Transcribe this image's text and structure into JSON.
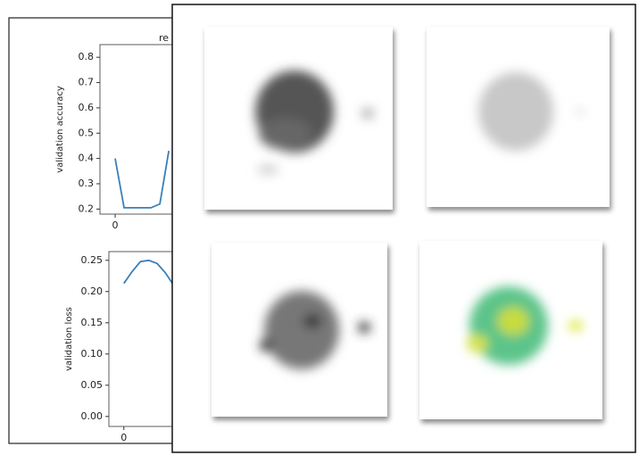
{
  "chart_data": [
    {
      "type": "line",
      "title": "re",
      "y_label": "validation accuracy",
      "x": [
        0,
        1,
        2,
        3,
        4,
        5,
        6
      ],
      "values": [
        0.4,
        0.205,
        0.205,
        0.205,
        0.205,
        0.22,
        0.43
      ],
      "color": "#3a7fb8",
      "xlim": [
        -1.7,
        53
      ],
      "ylim": [
        0.18,
        0.85
      ],
      "xticks": [
        0
      ],
      "yticks": [
        0.2,
        0.3,
        0.4,
        0.5,
        0.6,
        0.7,
        0.8
      ]
    },
    {
      "type": "line",
      "y_label": "validation loss",
      "x": [
        0,
        1,
        2,
        3,
        4,
        5,
        6
      ],
      "values": [
        0.213,
        0.232,
        0.248,
        0.25,
        0.245,
        0.23,
        0.21
      ],
      "color": "#3a7fb8",
      "xlim": [
        -1.8,
        56
      ],
      "ylim": [
        -0.016,
        0.264
      ],
      "xticks": [
        0
      ],
      "yticks": [
        {
          "value": 0,
          "label": "0.00"
        },
        0.05,
        {
          "value": 0.1,
          "label": "0.10"
        },
        0.15,
        {
          "value": 0.2,
          "label": "0.20"
        },
        0.25
      ]
    }
  ]
}
